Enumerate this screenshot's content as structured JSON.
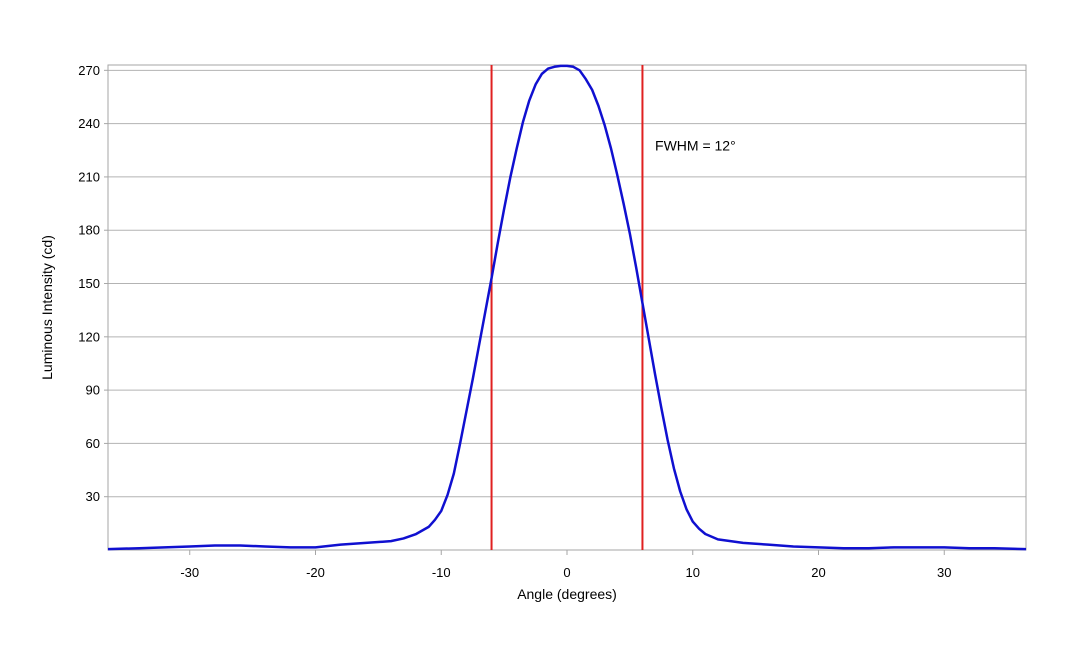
{
  "chart_data": {
    "type": "line",
    "xlabel": "Angle (degrees)",
    "ylabel": "Luminous Intensity (cd)",
    "xlim": [
      -36.5,
      36.5
    ],
    "ylim": [
      0,
      273
    ],
    "xticks": [
      -30,
      -20,
      -10,
      0,
      10,
      20,
      30
    ],
    "yticks": [
      30,
      60,
      90,
      120,
      150,
      180,
      210,
      240,
      270
    ],
    "grid": "horizontal",
    "series": [
      {
        "color": "#1010d0",
        "x": [
          -36.5,
          -34,
          -32,
          -30,
          -28,
          -26,
          -24,
          -22,
          -20,
          -18,
          -16,
          -14,
          -13,
          -12,
          -11,
          -10.5,
          -10,
          -9.5,
          -9,
          -8.5,
          -8,
          -7.5,
          -7,
          -6.5,
          -6,
          -5.5,
          -5,
          -4.5,
          -4,
          -3.5,
          -3,
          -2.5,
          -2,
          -1.5,
          -1,
          -0.5,
          0,
          0.5,
          1,
          1.5,
          2,
          2.5,
          3,
          3.5,
          4,
          4.5,
          5,
          5.5,
          6,
          6.5,
          7,
          7.5,
          8,
          8.5,
          9,
          9.5,
          10,
          10.5,
          11,
          12,
          13,
          14,
          16,
          18,
          20,
          22,
          24,
          26,
          28,
          30,
          32,
          34,
          36.5
        ],
        "y": [
          0.5,
          1,
          1.5,
          2,
          2.5,
          2.5,
          2,
          1.5,
          1.5,
          3,
          4,
          5,
          6.5,
          9,
          13,
          17,
          22,
          31,
          43,
          60,
          78,
          96,
          115,
          134,
          153,
          173,
          192,
          210,
          226,
          241,
          253,
          262,
          268,
          271,
          272,
          272.5,
          272.5,
          272,
          270,
          265,
          259,
          250,
          239,
          226,
          211,
          195,
          178,
          159,
          139,
          119,
          99,
          80,
          62,
          46,
          33,
          23,
          16,
          12,
          9,
          6,
          5,
          4,
          3,
          2,
          1.5,
          1,
          1,
          1.5,
          1.5,
          1.5,
          1,
          1,
          0.5
        ]
      }
    ],
    "vlines": [
      {
        "x": -6,
        "color": "#e02020"
      },
      {
        "x": 6,
        "color": "#e02020"
      }
    ],
    "annotations": [
      {
        "text": "FWHM = 12°",
        "x": 7,
        "y": 225
      }
    ]
  }
}
